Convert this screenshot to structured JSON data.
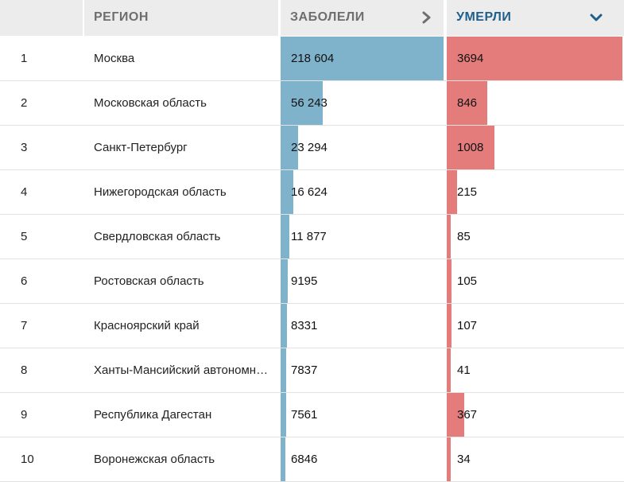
{
  "header": {
    "region_label": "РЕГИОН",
    "cases_label": "ЗАБОЛЕЛИ",
    "deaths_label": "УМЕРЛИ",
    "cases_icon": "chevron-right-icon",
    "deaths_icon": "chevron-down-icon"
  },
  "colors": {
    "cases_bar": "#7fb3cc",
    "deaths_bar": "#e57c7c",
    "active_header": "#1f5f8b",
    "header_bg": "#ececec"
  },
  "chart_data": {
    "type": "table",
    "columns": [
      "",
      "РЕГИОН",
      "ЗАБОЛЕЛИ",
      "УМЕРЛИ"
    ],
    "sorted_by": "УМЕРЛИ",
    "rows": [
      {
        "rank": "1",
        "region": "Москва",
        "cases": 218604,
        "cases_label": "218 604",
        "deaths": 3694,
        "deaths_label": "3694"
      },
      {
        "rank": "2",
        "region": "Московская область",
        "cases": 56243,
        "cases_label": "56 243",
        "deaths": 846,
        "deaths_label": "846"
      },
      {
        "rank": "3",
        "region": "Санкт-Петербург",
        "cases": 23294,
        "cases_label": "23 294",
        "deaths": 1008,
        "deaths_label": "1008"
      },
      {
        "rank": "4",
        "region": "Нижегородская область",
        "cases": 16624,
        "cases_label": "16 624",
        "deaths": 215,
        "deaths_label": "215"
      },
      {
        "rank": "5",
        "region": "Свердловская область",
        "cases": 11877,
        "cases_label": "11 877",
        "deaths": 85,
        "deaths_label": "85"
      },
      {
        "rank": "6",
        "region": "Ростовская область",
        "cases": 9195,
        "cases_label": "9195",
        "deaths": 105,
        "deaths_label": "105"
      },
      {
        "rank": "7",
        "region": "Красноярский край",
        "cases": 8331,
        "cases_label": "8331",
        "deaths": 107,
        "deaths_label": "107"
      },
      {
        "rank": "8",
        "region": "Ханты-Мансийский автономный округ",
        "cases": 7837,
        "cases_label": "7837",
        "deaths": 41,
        "deaths_label": "41"
      },
      {
        "rank": "9",
        "region": "Республика Дагестан",
        "cases": 7561,
        "cases_label": "7561",
        "deaths": 367,
        "deaths_label": "367"
      },
      {
        "rank": "10",
        "region": "Воронежская область",
        "cases": 6846,
        "cases_label": "6846",
        "deaths": 34,
        "deaths_label": "34"
      }
    ]
  }
}
